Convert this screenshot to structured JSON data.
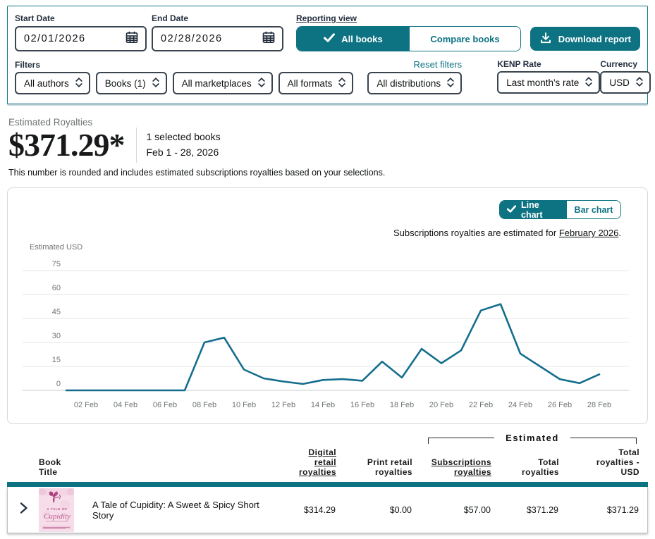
{
  "colors": {
    "accent_teal": "#0d7383",
    "chart_line": "#156e8e",
    "table_bar": "#0d7383"
  },
  "icons": {
    "calendar-icon": "grid-calendar",
    "check-icon": "checkmark",
    "download-icon": "arrow-down-into-tray",
    "dropdown-icon": "up-down-chevrons",
    "expand-icon": "chevron-right"
  },
  "filters_panel": {
    "start_date": {
      "label": "Start Date",
      "value": "02/01/2026"
    },
    "end_date": {
      "label": "End Date",
      "value": "02/28/2026"
    },
    "reporting_view": {
      "label": "Reporting view",
      "options": [
        {
          "label": "All books",
          "selected": true
        },
        {
          "label": "Compare books",
          "selected": false
        }
      ]
    },
    "download_button": "Download report",
    "filters_label": "Filters",
    "reset_link": "Reset filters",
    "dropdowns": [
      "All authors",
      "Books (1)",
      "All marketplaces",
      "All formats",
      "All distributions"
    ],
    "kenp": {
      "label": "KENP Rate",
      "value": "Last month's rate"
    },
    "currency": {
      "label": "Currency",
      "value": "USD"
    }
  },
  "summary": {
    "label": "Estimated Royalties",
    "amount": "$371.29*",
    "selected_books": "1 selected books",
    "date_range": "Feb 1 - 28, 2026",
    "disclaimer": "This number is rounded and includes estimated subscriptions royalties based on your selections."
  },
  "chart_panel": {
    "toggle": [
      {
        "label": "Line chart",
        "selected": true
      },
      {
        "label": "Bar chart",
        "selected": false
      }
    ],
    "subtitle_prefix": "Subscriptions royalties are estimated for ",
    "subtitle_link": "February 2026",
    "subtitle_suffix": "."
  },
  "chart_data": {
    "type": "line",
    "title": "",
    "ylabel": "Estimated USD",
    "xlabel": "",
    "x": [
      "01 Feb",
      "02 Feb",
      "03 Feb",
      "04 Feb",
      "05 Feb",
      "06 Feb",
      "07 Feb",
      "08 Feb",
      "09 Feb",
      "10 Feb",
      "11 Feb",
      "12 Feb",
      "13 Feb",
      "14 Feb",
      "15 Feb",
      "16 Feb",
      "17 Feb",
      "18 Feb",
      "19 Feb",
      "20 Feb",
      "21 Feb",
      "22 Feb",
      "23 Feb",
      "24 Feb",
      "25 Feb",
      "26 Feb",
      "27 Feb",
      "28 Feb"
    ],
    "series": [
      {
        "name": "Estimated USD",
        "values": [
          0,
          0,
          0,
          0,
          0,
          0,
          0,
          30,
          33,
          13,
          7.5,
          5.5,
          4,
          6.5,
          7,
          6,
          18,
          8,
          26,
          17,
          25,
          50,
          54,
          23,
          15,
          7,
          4.5,
          10
        ]
      }
    ],
    "yticks": [
      0,
      15,
      30,
      45,
      60,
      75
    ],
    "ylim": [
      0,
      75
    ],
    "x_tick_interval": 2,
    "grid": true,
    "legend": "none",
    "line_color": "#156e8e"
  },
  "table": {
    "estimated_group_label": "Estimated",
    "columns": [
      {
        "label": "Book\nTitle",
        "underline": false
      },
      {
        "label": "Digital\nretail\nroyalties",
        "underline": true
      },
      {
        "label": "Print retail\nroyalties",
        "underline": false
      },
      {
        "label": "Subscriptions\nroyalties",
        "underline": true
      },
      {
        "label": "Total\nroyalties",
        "underline": false
      },
      {
        "label": "Total\nroyalties -\nUSD",
        "underline": false
      }
    ],
    "rows": [
      {
        "title": "A Tale of Cupidity: A Sweet & Spicy Short Story",
        "cover_small_text": "A TALE OF",
        "cover_script_text": "Cupidity",
        "digital": "$314.29",
        "print": "$0.00",
        "subscriptions": "$57.00",
        "total": "$371.29",
        "total_usd": "$371.29"
      }
    ]
  }
}
